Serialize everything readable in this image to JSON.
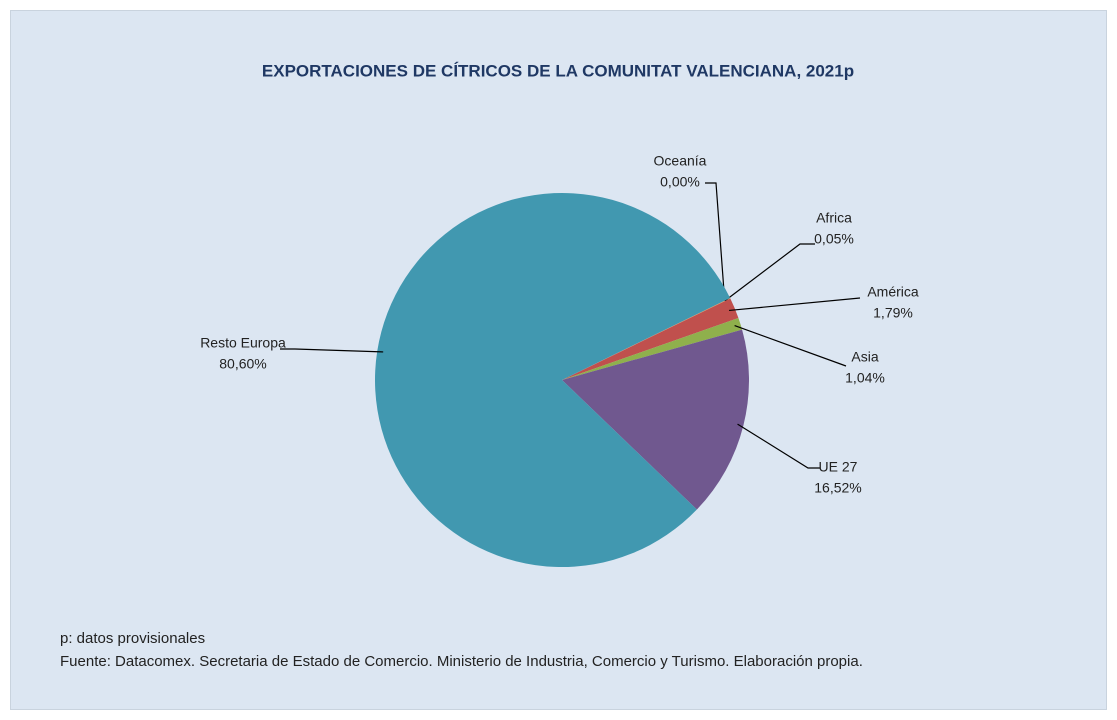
{
  "chart_data": {
    "type": "pie",
    "title": "EXPORTACIONES DE CÍTRICOS DE LA COMUNITAT VALENCIANA, 2021p",
    "categories": [
      "Oceanía",
      "Africa",
      "América",
      "Asia",
      "UE 27",
      "Resto Europa"
    ],
    "values": [
      0.0,
      0.05,
      1.79,
      1.04,
      16.52,
      80.6
    ],
    "value_labels": [
      "0,00%",
      "0,05%",
      "1,79%",
      "1,04%",
      "16,52%",
      "80,60%"
    ],
    "colors": [
      "#4f81bd",
      "#f79646",
      "#c0504d",
      "#8fb04c",
      "#70588f",
      "#4198b0"
    ],
    "notes": [
      "p: datos provisionales",
      "Fuente: Datacomex. Secretaria de Estado de Comercio. Ministerio de Industria, Comercio y Turismo. Elaboración propia."
    ]
  }
}
